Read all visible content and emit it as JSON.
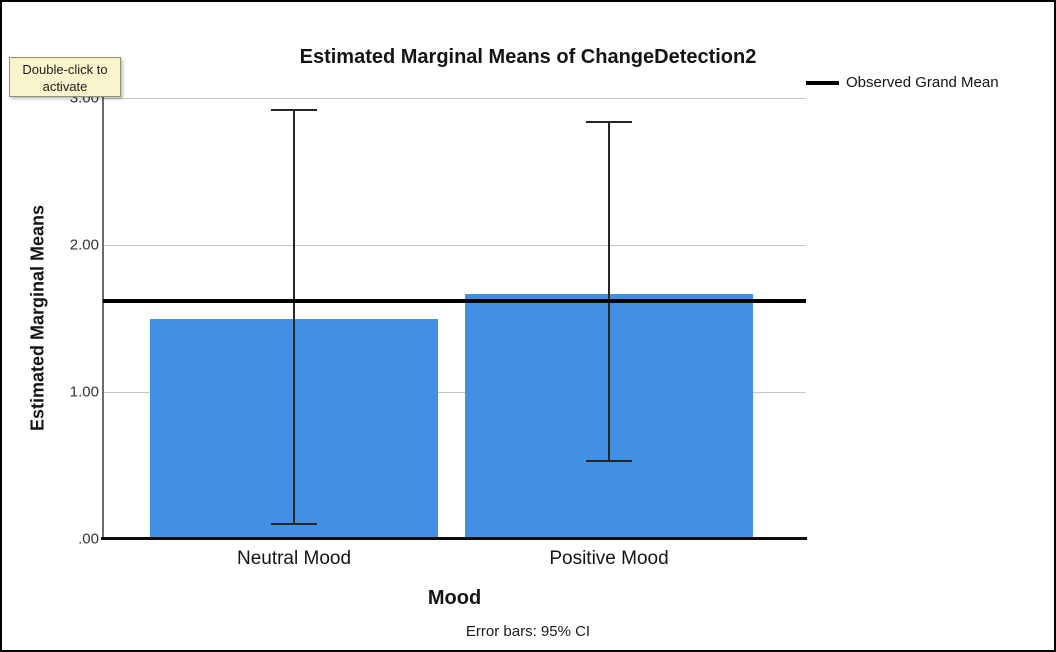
{
  "embed_overlay": {
    "tooltip_line1": "Double-click to",
    "tooltip_line2": "activate"
  },
  "chart_data": {
    "type": "bar",
    "title": "Estimated Marginal Means of ChangeDetection2",
    "xlabel": "Mood",
    "ylabel": "Estimated Marginal Means",
    "categories": [
      "Neutral Mood",
      "Positive Mood"
    ],
    "values": [
      1.5,
      1.67
    ],
    "error_bars": {
      "type": "95% CI",
      "lower": [
        0.1,
        0.53
      ],
      "upper": [
        2.92,
        2.84
      ]
    },
    "grand_mean": 1.62,
    "legend": [
      {
        "label": "Observed Grand Mean",
        "swatch": "black-line"
      }
    ],
    "yticks": [
      ".00",
      "1.00",
      "2.00",
      "3.00"
    ],
    "ylim": [
      0,
      3
    ],
    "grid": true,
    "legend_position": "top-right",
    "bar_color": "#4190e4",
    "grand_mean_color": "#000000",
    "footnote": "Error bars: 95% CI"
  }
}
